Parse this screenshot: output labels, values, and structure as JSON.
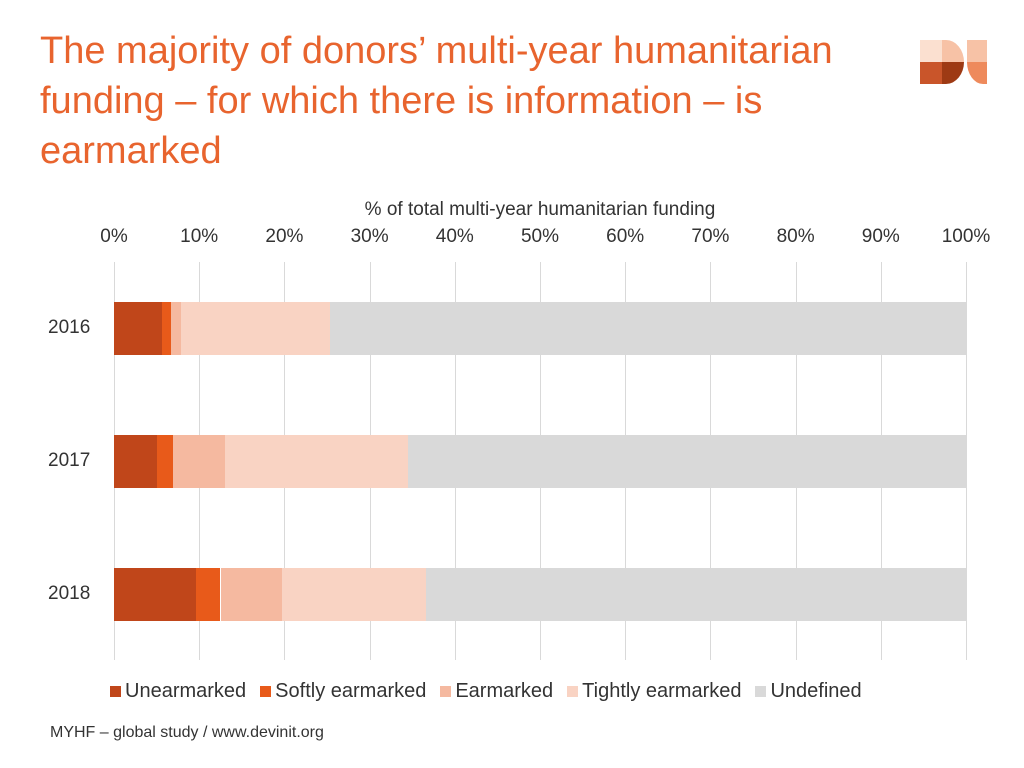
{
  "title": "The majority of donors’ multi-year humanitarian funding – for which there is information – is earmarked",
  "source": "MYHF – global study / www.devinit.org",
  "logo_text": "DI",
  "chart_data": {
    "type": "bar",
    "orientation": "horizontal",
    "stacked": true,
    "xlabel": "% of total multi-year humanitarian funding",
    "xlim": [
      0,
      100
    ],
    "x_ticks": [
      "0%",
      "10%",
      "20%",
      "30%",
      "40%",
      "50%",
      "60%",
      "70%",
      "80%",
      "90%",
      "100%"
    ],
    "grid": true,
    "legend_position": "bottom",
    "categories": [
      "2016",
      "2017",
      "2018"
    ],
    "series": [
      {
        "name": "Unearmarked",
        "color": "#C0461A",
        "values": [
          5.6,
          5.0,
          9.6
        ]
      },
      {
        "name": "Softly earmarked",
        "color": "#E85A1A",
        "values": [
          1.1,
          1.9,
          2.9
        ]
      },
      {
        "name": "Earmarked",
        "color": "#F5B9A0",
        "values": [
          1.2,
          6.1,
          7.2
        ]
      },
      {
        "name": "Tightly earmarked",
        "color": "#F9D3C3",
        "values": [
          17.5,
          21.5,
          16.9
        ]
      },
      {
        "name": "Undefined",
        "color": "#D9D9D9",
        "values": [
          74.6,
          65.5,
          63.4
        ]
      }
    ]
  }
}
